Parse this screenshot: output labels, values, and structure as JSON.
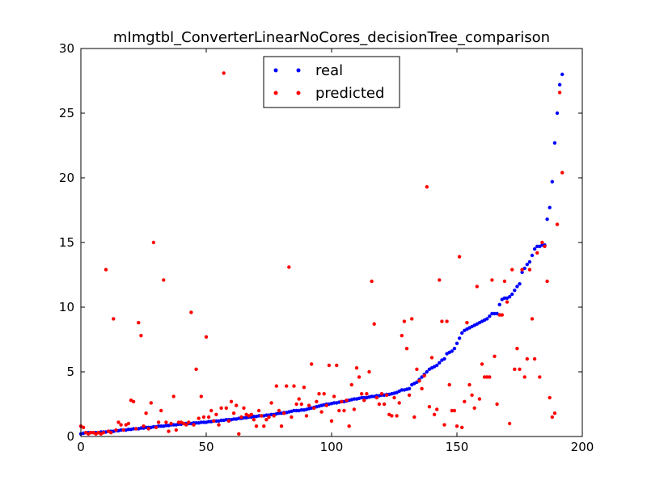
{
  "chart_data": {
    "type": "scatter",
    "title": "mImgtbl_ConverterLinearNoCores_decisionTree_comparison",
    "x": [
      0,
      1,
      2,
      3,
      4,
      5,
      6,
      7,
      8,
      9,
      10,
      11,
      12,
      13,
      14,
      15,
      16,
      17,
      18,
      19,
      20,
      21,
      22,
      23,
      24,
      25,
      26,
      27,
      28,
      29,
      30,
      31,
      32,
      33,
      34,
      35,
      36,
      37,
      38,
      39,
      40,
      41,
      42,
      43,
      44,
      45,
      46,
      47,
      48,
      49,
      50,
      51,
      52,
      53,
      54,
      55,
      56,
      57,
      58,
      59,
      60,
      61,
      62,
      63,
      64,
      65,
      66,
      67,
      68,
      69,
      70,
      71,
      72,
      73,
      74,
      75,
      76,
      77,
      78,
      79,
      80,
      81,
      82,
      83,
      84,
      85,
      86,
      87,
      88,
      89,
      90,
      91,
      92,
      93,
      94,
      95,
      96,
      97,
      98,
      99,
      100,
      101,
      102,
      103,
      104,
      105,
      106,
      107,
      108,
      109,
      110,
      111,
      112,
      113,
      114,
      115,
      116,
      117,
      118,
      119,
      120,
      121,
      122,
      123,
      124,
      125,
      126,
      127,
      128,
      129,
      130,
      131,
      132,
      133,
      134,
      135,
      136,
      137,
      138,
      139,
      140,
      141,
      142,
      143,
      144,
      145,
      146,
      147,
      148,
      149,
      150,
      151,
      152,
      153,
      154,
      155,
      156,
      157,
      158,
      159,
      160,
      161,
      162,
      163,
      164,
      165,
      166,
      167,
      168,
      169,
      170,
      171,
      172,
      173,
      174,
      175,
      176,
      177,
      178,
      179,
      180,
      181,
      182,
      183,
      184,
      185,
      186,
      187,
      188,
      189,
      190,
      191,
      192
    ],
    "series": [
      {
        "name": "real",
        "color": "#0000ff",
        "values": [
          0.2,
          0.25,
          0.3,
          0.3,
          0.3,
          0.3,
          0.3,
          0.3,
          0.35,
          0.35,
          0.35,
          0.4,
          0.4,
          0.4,
          0.45,
          0.45,
          0.5,
          0.5,
          0.5,
          0.55,
          0.55,
          0.6,
          0.6,
          0.6,
          0.65,
          0.65,
          0.7,
          0.7,
          0.7,
          0.75,
          0.75,
          0.8,
          0.8,
          0.8,
          0.85,
          0.85,
          0.9,
          0.9,
          0.9,
          0.95,
          0.95,
          1.0,
          1.0,
          1.0,
          1.0,
          1.05,
          1.05,
          1.05,
          1.1,
          1.1,
          1.1,
          1.15,
          1.15,
          1.2,
          1.2,
          1.2,
          1.25,
          1.25,
          1.3,
          1.3,
          1.3,
          1.35,
          1.35,
          1.4,
          1.4,
          1.45,
          1.45,
          1.5,
          1.5,
          1.55,
          1.55,
          1.6,
          1.6,
          1.6,
          1.65,
          1.65,
          1.7,
          1.7,
          1.75,
          1.8,
          1.8,
          1.85,
          1.85,
          1.9,
          1.95,
          2.0,
          2.0,
          2.0,
          2.05,
          2.05,
          2.1,
          2.15,
          2.2,
          2.25,
          2.3,
          2.35,
          2.4,
          2.45,
          2.5,
          2.5,
          2.55,
          2.6,
          2.6,
          2.65,
          2.7,
          2.7,
          2.75,
          2.8,
          2.85,
          2.9,
          2.9,
          2.95,
          3.0,
          3.0,
          3.0,
          3.05,
          3.1,
          3.1,
          3.15,
          3.15,
          3.2,
          3.2,
          3.25,
          3.25,
          3.3,
          3.35,
          3.4,
          3.5,
          3.6,
          3.6,
          3.65,
          3.7,
          4.0,
          4.1,
          4.2,
          4.4,
          4.6,
          4.8,
          5.0,
          5.2,
          5.3,
          5.4,
          5.5,
          5.7,
          5.9,
          6.0,
          6.4,
          6.5,
          6.6,
          6.8,
          7.2,
          7.6,
          8.0,
          8.2,
          8.3,
          8.4,
          8.5,
          8.6,
          8.7,
          8.8,
          8.9,
          9.0,
          9.1,
          9.3,
          9.5,
          9.5,
          9.5,
          10.2,
          10.6,
          10.7,
          10.7,
          10.8,
          11.0,
          11.3,
          11.6,
          11.8,
          12.7,
          13.0,
          13.3,
          13.5,
          14.0,
          14.5,
          14.7,
          14.7,
          14.8,
          14.8,
          16.8,
          17.7,
          19.7,
          22.7,
          25.0,
          27.2,
          28.0
        ]
      },
      {
        "name": "predicted",
        "color": "#ff0000",
        "values": [
          0.8,
          0.7,
          0.3,
          0.2,
          0.3,
          0.3,
          0.2,
          0.3,
          0.2,
          0.3,
          12.9,
          0.4,
          0.3,
          9.1,
          0.5,
          1.1,
          0.9,
          0.5,
          0.9,
          1.0,
          2.8,
          2.7,
          0.6,
          8.8,
          7.8,
          0.8,
          1.8,
          0.6,
          2.6,
          15.0,
          0.7,
          1.1,
          2.0,
          12.1,
          1.1,
          0.4,
          1.0,
          3.1,
          0.5,
          1.1,
          1.1,
          1.0,
          0.9,
          1.1,
          9.6,
          0.9,
          5.2,
          1.4,
          3.1,
          1.5,
          7.7,
          1.5,
          2.0,
          1.2,
          1.7,
          0.9,
          2.2,
          28.1,
          2.2,
          1.2,
          2.7,
          1.8,
          2.4,
          0.2,
          1.5,
          2.2,
          1.7,
          1.6,
          1.7,
          1.3,
          0.8,
          2.0,
          1.6,
          0.8,
          1.3,
          1.5,
          2.6,
          1.6,
          3.9,
          2.0,
          0.8,
          1.8,
          3.9,
          13.1,
          1.5,
          3.9,
          2.5,
          2.9,
          2.5,
          3.8,
          1.6,
          2.4,
          5.6,
          2.2,
          2.7,
          3.3,
          1.9,
          3.3,
          2.4,
          5.5,
          1.2,
          3.1,
          5.5,
          2.0,
          2.7,
          2.0,
          2.8,
          0.8,
          4.0,
          2.1,
          5.3,
          4.6,
          3.3,
          2.8,
          3.3,
          5.0,
          12.0,
          8.7,
          3.0,
          2.5,
          3.3,
          2.5,
          3.2,
          1.7,
          1.6,
          3.0,
          1.6,
          2.6,
          7.8,
          8.9,
          6.8,
          3.2,
          9.1,
          1.5,
          5.2,
          4.3,
          3.7,
          4.7,
          19.3,
          2.3,
          6.1,
          1.7,
          2.1,
          12.1,
          8.9,
          0.9,
          8.9,
          4.0,
          2.0,
          2.0,
          0.8,
          13.9,
          0.7,
          2.7,
          8.8,
          4.0,
          3.2,
          2.2,
          11.6,
          2.9,
          5.6,
          4.6,
          4.6,
          4.6,
          12.1,
          6.2,
          2.5,
          9.4,
          9.4,
          12.0,
          10.4,
          1.0,
          12.9,
          5.2,
          6.8,
          5.2,
          12.9,
          4.6,
          6.0,
          12.9,
          9.1,
          6.0,
          14.2,
          4.6,
          15.0,
          14.7,
          12.0,
          3.0,
          1.5,
          1.8,
          16.4,
          26.6,
          20.4
        ]
      }
    ],
    "xlim": [
      0,
      200
    ],
    "xticks": [
      0,
      50,
      100,
      150,
      200
    ],
    "ylim": [
      0,
      30
    ],
    "yticks": [
      0,
      5,
      10,
      15,
      20,
      25,
      30
    ],
    "legend": "upper center"
  }
}
